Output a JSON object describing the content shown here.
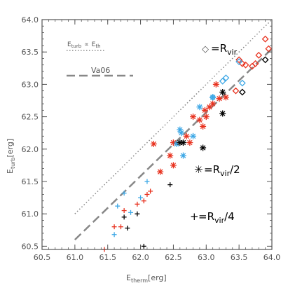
{
  "chart_data": {
    "type": "scatter",
    "xlabel_main": "E",
    "xlabel_sub": "therm",
    "xlabel_tail": "[erg]",
    "ylabel_main": "E",
    "ylabel_sub": "turb",
    "ylabel_tail": "[erg]",
    "xlim": [
      60.5,
      64.0
    ],
    "ylim": [
      60.45,
      64.0
    ],
    "xticks": [
      "60.5",
      "61.0",
      "61.5",
      "62.0",
      "62.5",
      "63.0",
      "63.5",
      "64.0"
    ],
    "yticks": [
      "60.5",
      "61.0",
      "61.5",
      "62.0",
      "62.5",
      "63.0",
      "63.5",
      "64.0"
    ],
    "legend_dotted": {
      "a": "E",
      "a_sub": "turb",
      "prop": "∝",
      "b": "E",
      "b_sub": "th"
    },
    "legend_dashed": "Va06",
    "annotations": [
      {
        "symbol": "◇",
        "text": "=R",
        "sub": "vir",
        "tail": ""
      },
      {
        "symbol": "✳",
        "text": "=R",
        "sub": "vir",
        "tail": "/2"
      },
      {
        "symbol": "+",
        "text": "=R",
        "sub": "vir",
        "tail": "/4"
      }
    ],
    "colors": {
      "red": "#e8321f",
      "blue": "#3ea8e6",
      "black": "#000000",
      "axis": "#555555",
      "line": "#888888"
    },
    "lines": [
      {
        "style": "dotted",
        "x": [
          61.0,
          64.0
        ],
        "y": [
          61.0,
          64.0
        ]
      },
      {
        "style": "dashed",
        "x": [
          61.0,
          64.0
        ],
        "y": [
          60.6,
          63.55
        ]
      }
    ],
    "series": [
      {
        "marker": "diamond",
        "color": "red",
        "x": [
          63.5,
          63.55,
          63.6,
          63.7,
          63.75,
          63.9,
          63.95,
          63.8,
          63.45
        ],
        "y": [
          63.38,
          63.32,
          63.3,
          63.28,
          63.32,
          63.7,
          63.55,
          63.45,
          62.9
        ]
      },
      {
        "marker": "diamond",
        "color": "blue",
        "x": [
          63.3,
          63.25,
          63.5,
          63.1,
          63.55
        ],
        "y": [
          63.1,
          63.05,
          63.35,
          62.8,
          63.02
        ]
      },
      {
        "marker": "diamond",
        "color": "black",
        "x": [
          63.9,
          63.55
        ],
        "y": [
          63.38,
          62.88
        ]
      },
      {
        "marker": "asterisk",
        "color": "red",
        "x": [
          62.2,
          62.3,
          62.45,
          62.5,
          62.5,
          62.7,
          62.8,
          62.95,
          63.0,
          63.05,
          63.1,
          63.15,
          63.3,
          62.98,
          62.9,
          62.75,
          63.2
        ],
        "y": [
          62.08,
          61.65,
          61.9,
          61.75,
          62.1,
          62.2,
          62.5,
          62.35,
          62.5,
          62.65,
          62.7,
          63.0,
          62.8,
          62.6,
          62.45,
          62.1,
          62.78
        ]
      },
      {
        "marker": "asterisk",
        "color": "blue",
        "x": [
          62.6,
          62.62,
          62.65,
          62.8,
          62.9,
          63.1,
          62.55
        ],
        "y": [
          62.3,
          62.25,
          61.9,
          62.2,
          62.65,
          62.8,
          62.08
        ]
      },
      {
        "marker": "asterisk",
        "color": "black",
        "x": [
          62.65,
          62.95,
          63.25,
          63.25,
          62.6
        ],
        "y": [
          62.1,
          62.02,
          62.55,
          62.88,
          62.1
        ]
      },
      {
        "marker": "plus",
        "color": "red",
        "x": [
          61.45,
          61.6,
          61.7,
          61.95,
          62.05,
          62.1,
          62.15,
          61.75
        ],
        "y": [
          60.45,
          60.8,
          60.8,
          61.15,
          61.2,
          61.3,
          61.35,
          61.05
        ]
      },
      {
        "marker": "plus",
        "color": "blue",
        "x": [
          61.6,
          61.65,
          61.75,
          61.85,
          62.1,
          62.0
        ],
        "y": [
          60.68,
          61.12,
          61.32,
          61.02,
          61.5,
          61.25
        ]
      },
      {
        "marker": "plus",
        "color": "black",
        "x": [
          61.75,
          61.8,
          61.95,
          62.05,
          62.45
        ],
        "y": [
          60.95,
          60.78,
          61.0,
          60.5,
          61.45
        ]
      }
    ]
  }
}
